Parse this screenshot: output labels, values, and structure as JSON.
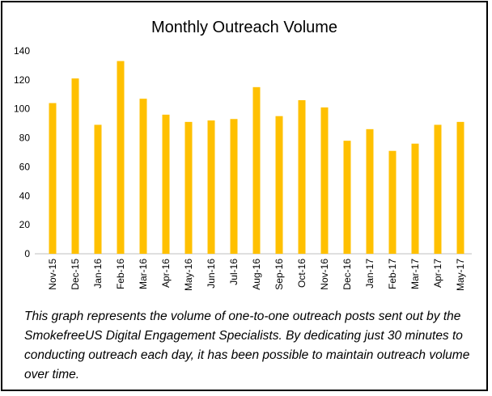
{
  "chart_data": {
    "type": "bar",
    "title": "Monthly Outreach Volume",
    "categories": [
      "Nov-15",
      "Dec-15",
      "Jan-16",
      "Feb-16",
      "Mar-16",
      "Apr-16",
      "May-16",
      "Jun-16",
      "Jul-16",
      "Aug-16",
      "Sep-16",
      "Oct-16",
      "Nov-16",
      "Dec-16",
      "Jan-17",
      "Feb-17",
      "Mar-17",
      "Apr-17",
      "May-17"
    ],
    "values": [
      104,
      121,
      89,
      133,
      107,
      96,
      91,
      92,
      93,
      115,
      95,
      106,
      101,
      78,
      86,
      71,
      76,
      89,
      91
    ],
    "ylim": [
      0,
      140
    ],
    "yticks": [
      0,
      20,
      40,
      60,
      80,
      100,
      120,
      140
    ],
    "grid": false,
    "bar_color": "#FFC000",
    "xlabel": "",
    "ylabel": ""
  },
  "caption": "This graph represents the volume of one-to-one outreach posts sent out by the SmokefreeUS Digital Engagement Specialists. By dedicating just 30 minutes to conducting outreach each day, it has been possible to maintain outreach volume over time."
}
